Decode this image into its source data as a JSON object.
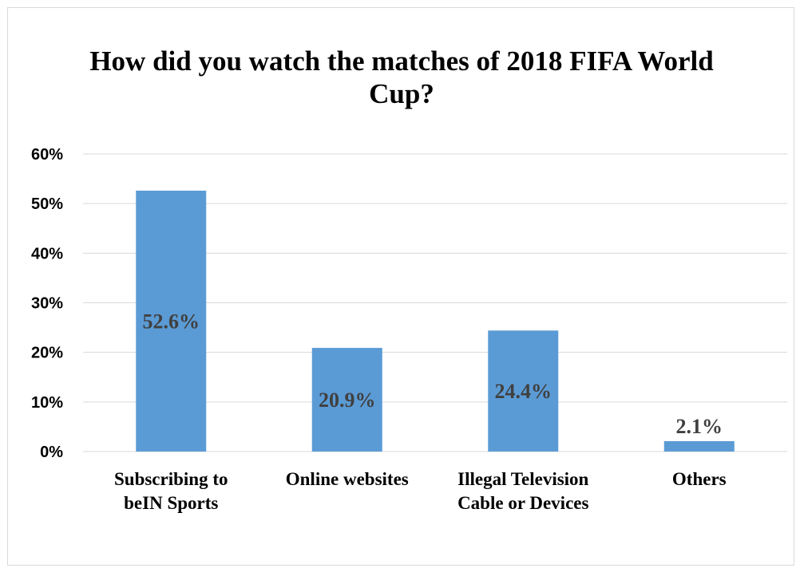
{
  "chart_data": {
    "type": "bar",
    "title_lines": [
      "How did you watch the matches of 2018 FIFA World",
      "Cup?"
    ],
    "categories": [
      [
        "Subscribing to",
        "beIN Sports"
      ],
      [
        "Online websites"
      ],
      [
        "Illegal Television",
        "Cable or Devices"
      ],
      [
        "Others"
      ]
    ],
    "values": [
      52.6,
      20.9,
      24.4,
      2.1
    ],
    "data_labels": [
      "52.6%",
      "20.9%",
      "24.4%",
      "2.1%"
    ],
    "ylim": [
      0,
      60
    ],
    "yticks": [
      0,
      10,
      20,
      30,
      40,
      50,
      60
    ],
    "ytick_labels": [
      "0%",
      "10%",
      "20%",
      "30%",
      "40%",
      "50%",
      "60%"
    ],
    "grid": true,
    "legend": "none",
    "bar_color": "#5b9bd5",
    "grid_color": "#d9d9d9"
  }
}
